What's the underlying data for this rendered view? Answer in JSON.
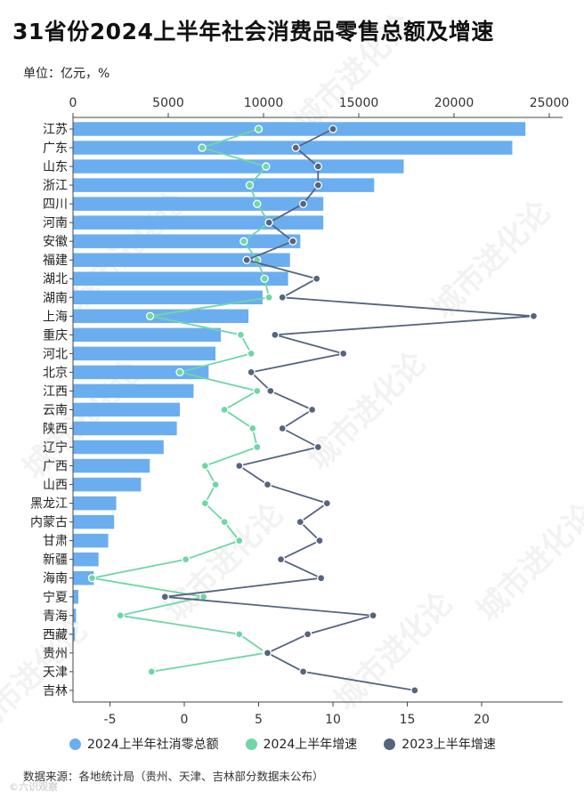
{
  "title": "31省份2024上半年社会消费品零售总额及增速",
  "unit_label": "单位：亿元，%",
  "source_note": "数据来源：各地统计局（贵州、天津、吉林部分数据未公布）",
  "watermark": "城市进化论",
  "watermark_small": "©六识观察",
  "legend": [
    {
      "label": "2024上半年社消零总额",
      "color": "#6aaef0"
    },
    {
      "label": "2024上半年增速",
      "color": "#6fd6a6"
    },
    {
      "label": "2023上半年增速",
      "color": "#56647e"
    }
  ],
  "chart_data": {
    "type": "bar",
    "orientation": "horizontal",
    "categories": [
      "江苏",
      "广东",
      "山东",
      "浙江",
      "四川",
      "河南",
      "安徽",
      "福建",
      "湖北",
      "湖南",
      "上海",
      "重庆",
      "河北",
      "北京",
      "江西",
      "云南",
      "陕西",
      "辽宁",
      "广西",
      "山西",
      "黑龙江",
      "内蒙古",
      "甘肃",
      "新疆",
      "海南",
      "宁夏",
      "青海",
      "西藏",
      "贵州",
      "天津",
      "吉林"
    ],
    "top_axis": {
      "ticks": [
        "0",
        "5000",
        "10000",
        "15000",
        "20000",
        "25000"
      ],
      "tick_values": [
        0,
        5000,
        10000,
        15000,
        20000,
        25000
      ],
      "range": [
        0,
        25500
      ]
    },
    "bottom_axis": {
      "ticks": [
        "-5",
        "0",
        "5",
        "10",
        "15",
        "20"
      ],
      "tick_values": [
        -5,
        0,
        5,
        10,
        15,
        20
      ],
      "range": [
        -7,
        24.5
      ]
    },
    "series": [
      {
        "name": "2024上半年社消零总额",
        "color": "#6aaef0",
        "axis": "top",
        "values": [
          23750,
          23060,
          17360,
          15810,
          13140,
          13140,
          11930,
          11390,
          11290,
          9950,
          9210,
          7760,
          7480,
          7120,
          6330,
          5610,
          5450,
          4760,
          4030,
          3570,
          2270,
          2160,
          1850,
          1340,
          1090,
          280,
          160,
          100,
          null,
          null,
          null
        ]
      },
      {
        "name": "2024上半年增速",
        "color": "#6fd6a6",
        "axis": "bottom",
        "values": [
          5.0,
          1.2,
          5.5,
          4.4,
          4.9,
          5.7,
          4.0,
          4.9,
          5.4,
          5.7,
          -2.3,
          3.8,
          4.5,
          -0.3,
          4.9,
          2.7,
          4.6,
          4.9,
          1.4,
          2.1,
          1.4,
          2.7,
          3.7,
          0.1,
          -6.2,
          1.3,
          -4.3,
          3.7,
          5.5,
          -2.2,
          null
        ]
      },
      {
        "name": "2023上半年增速",
        "color": "#56647e",
        "axis": "bottom",
        "values": [
          10.0,
          7.5,
          9.0,
          9.0,
          8.0,
          5.7,
          7.3,
          4.2,
          8.9,
          6.6,
          23.5,
          6.1,
          10.7,
          4.5,
          5.8,
          8.6,
          6.6,
          9.0,
          3.7,
          5.6,
          9.6,
          7.8,
          9.1,
          6.5,
          9.2,
          -1.3,
          12.7,
          8.3,
          5.6,
          8.0,
          15.5
        ]
      }
    ],
    "grid": false,
    "legend_position": "bottom"
  }
}
